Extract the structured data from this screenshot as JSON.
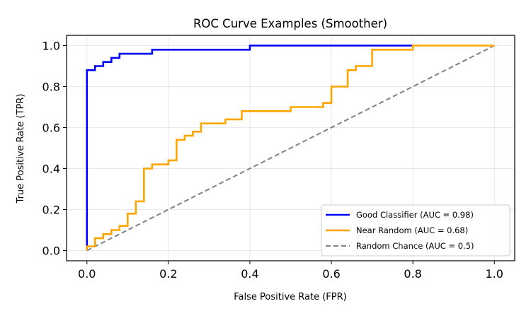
{
  "chart_data": {
    "type": "line",
    "title": "ROC Curve Examples (Smoother)",
    "xlabel": "False Positive Rate (FPR)",
    "ylabel": "True Positive Rate (TPR)",
    "xlim": [
      -0.05,
      1.05
    ],
    "ylim": [
      -0.05,
      1.05
    ],
    "xticks": [
      0.0,
      0.2,
      0.4,
      0.6,
      0.8,
      1.0
    ],
    "yticks": [
      0.0,
      0.2,
      0.4,
      0.6,
      0.8,
      1.0
    ],
    "xtick_labels": [
      "0.0",
      "0.2",
      "0.4",
      "0.6",
      "0.8",
      "1.0"
    ],
    "ytick_labels": [
      "0.0",
      "0.2",
      "0.4",
      "0.6",
      "0.8",
      "1.0"
    ],
    "grid": true,
    "legend_position": "lower-right",
    "series": [
      {
        "name": "Good Classifier (AUC = 0.98)",
        "color": "#0000ff",
        "style": "solid",
        "x": [
          0.0,
          0.0,
          0.0,
          0.02,
          0.02,
          0.04,
          0.04,
          0.06,
          0.06,
          0.08,
          0.08,
          0.16,
          0.16,
          0.4,
          0.4,
          0.8
        ],
        "y": [
          0.0,
          0.88,
          0.88,
          0.88,
          0.9,
          0.9,
          0.92,
          0.92,
          0.94,
          0.94,
          0.96,
          0.96,
          0.98,
          0.98,
          1.0,
          1.0
        ]
      },
      {
        "name": "Near Random (AUC = 0.68)",
        "color": "#ffa500",
        "style": "solid",
        "x": [
          0.0,
          0.0,
          0.02,
          0.02,
          0.04,
          0.04,
          0.06,
          0.06,
          0.08,
          0.08,
          0.1,
          0.1,
          0.12,
          0.12,
          0.14,
          0.14,
          0.16,
          0.16,
          0.2,
          0.2,
          0.22,
          0.22,
          0.24,
          0.24,
          0.26,
          0.26,
          0.28,
          0.28,
          0.34,
          0.34,
          0.38,
          0.38,
          0.5,
          0.5,
          0.58,
          0.58,
          0.6,
          0.6,
          0.64,
          0.64,
          0.66,
          0.66,
          0.7,
          0.7,
          0.8,
          0.8,
          1.0
        ],
        "y": [
          0.0,
          0.02,
          0.02,
          0.06,
          0.06,
          0.08,
          0.08,
          0.1,
          0.1,
          0.12,
          0.12,
          0.18,
          0.18,
          0.24,
          0.24,
          0.4,
          0.4,
          0.42,
          0.42,
          0.44,
          0.44,
          0.54,
          0.54,
          0.56,
          0.56,
          0.58,
          0.58,
          0.62,
          0.62,
          0.64,
          0.64,
          0.68,
          0.68,
          0.7,
          0.7,
          0.72,
          0.72,
          0.8,
          0.8,
          0.88,
          0.88,
          0.9,
          0.9,
          0.98,
          0.98,
          1.0,
          1.0
        ]
      },
      {
        "name": "Random Chance (AUC = 0.5)",
        "color": "#808080",
        "style": "dashed",
        "x": [
          0.0,
          1.0
        ],
        "y": [
          0.0,
          1.0
        ]
      }
    ]
  }
}
